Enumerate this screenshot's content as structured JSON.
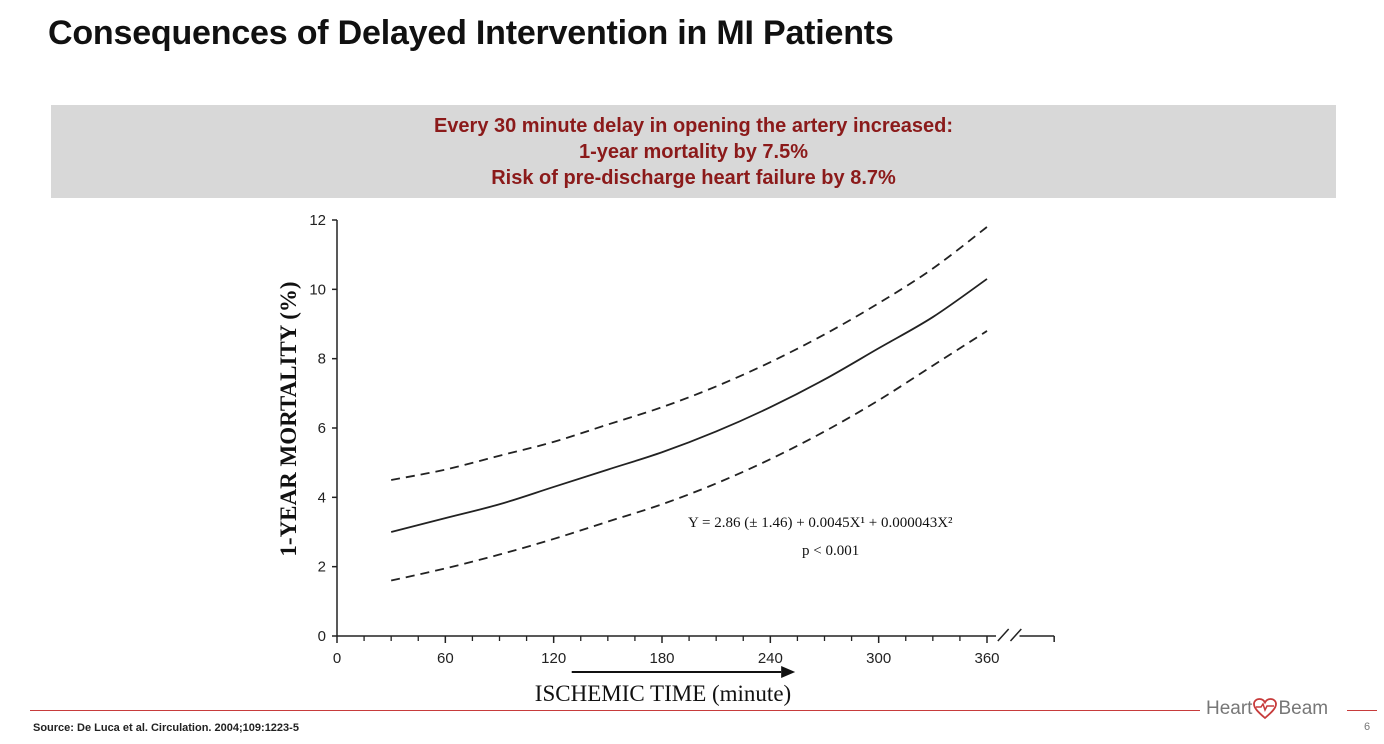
{
  "slide": {
    "title": "Consequences of Delayed Intervention in MI Patients",
    "banner": [
      "Every 30 minute delay in opening the artery increased:",
      "1-year mortality by 7.5%",
      "Risk of pre-discharge heart failure by 8.7%"
    ],
    "source": "Source:  De Luca et al. Circulation. 2004;109:1223-5",
    "page_number": "6",
    "brand_left": "Heart",
    "brand_right": "Beam",
    "colors": {
      "banner_text": "#8b1a1a",
      "banner_bg": "#d8d8d8",
      "footer_line": "#c73b3b"
    }
  },
  "chart_data": {
    "type": "line",
    "title": "",
    "xlabel": "ISCHEMIC TIME (minute)",
    "ylabel": "1-YEAR MORTALITY (%)",
    "xlim": [
      0,
      390
    ],
    "ylim": [
      0,
      12
    ],
    "x_ticks": [
      0,
      60,
      120,
      180,
      240,
      300,
      360
    ],
    "y_ticks": [
      0,
      2,
      4,
      6,
      8,
      10,
      12
    ],
    "axis_break": "after 360",
    "grid": false,
    "annotations": {
      "equation": "Y = 2.86 (± 1.46) + 0.0045X¹ + 0.000043X²",
      "p_value": "p < 0.001"
    },
    "series": [
      {
        "style": "solid",
        "x": [
          30,
          60,
          90,
          120,
          150,
          180,
          210,
          240,
          270,
          300,
          330,
          360
        ],
        "y": [
          3.0,
          3.4,
          3.8,
          4.3,
          4.8,
          5.3,
          5.9,
          6.6,
          7.4,
          8.3,
          9.2,
          10.3
        ]
      },
      {
        "style": "dashed",
        "x": [
          30,
          60,
          90,
          120,
          150,
          180,
          210,
          240,
          270,
          300,
          330,
          360
        ],
        "y": [
          4.5,
          4.8,
          5.2,
          5.6,
          6.1,
          6.6,
          7.2,
          7.9,
          8.7,
          9.6,
          10.6,
          11.8
        ]
      },
      {
        "style": "dashed",
        "x": [
          30,
          60,
          90,
          120,
          150,
          180,
          210,
          240,
          270,
          300,
          330,
          360
        ],
        "y": [
          1.6,
          1.95,
          2.35,
          2.8,
          3.3,
          3.8,
          4.4,
          5.1,
          5.9,
          6.8,
          7.8,
          8.8
        ]
      }
    ]
  }
}
